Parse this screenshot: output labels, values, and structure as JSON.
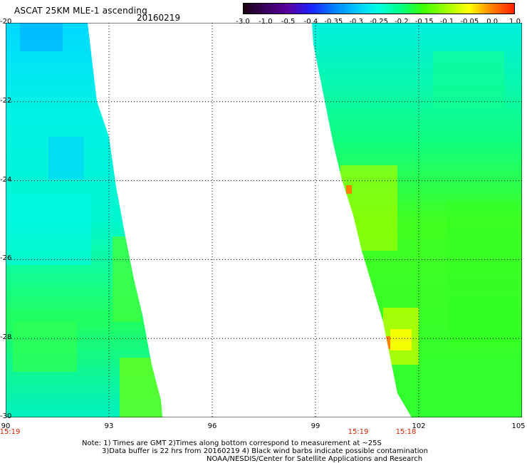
{
  "header": {
    "title": "ASCAT 25KM MLE-1 ascending",
    "date": "20160219"
  },
  "colorbar": {
    "ticks": [
      "-3.0",
      "-1.0",
      "-0.5",
      "-0.4",
      "-0.35",
      "-0.3",
      "-0.25",
      "-0.2",
      "-0.15",
      "-0.1",
      "-0.05",
      "0.0",
      "1.0"
    ],
    "colors": [
      "#1a0010",
      "#3a0060",
      "#5a00a0",
      "#1a20ff",
      "#0080ff",
      "#00c8ff",
      "#00ffe0",
      "#00ff80",
      "#40ff00",
      "#a0ff00",
      "#ffff00",
      "#ff8000",
      "#ff2000"
    ]
  },
  "axes": {
    "lat_labels": [
      "-20",
      "-22",
      "-24",
      "-26",
      "-28",
      "-30"
    ],
    "lon_labels": [
      "90",
      "93",
      "96",
      "99",
      "102",
      "105"
    ],
    "lat_range": [
      -30,
      -20
    ],
    "lon_range": [
      90,
      105
    ],
    "grid": true
  },
  "swath_times": {
    "left_swath": "15:19",
    "right_swath_start": "15:19",
    "right_swath_end": "15:18"
  },
  "notes": {
    "line1": "Note: 1) Times are GMT 2)Times along bottom correspond to measurement at ~25S",
    "line2": "3)Data buffer is 22 hrs from 20160219 4) Black wind barbs indicate possible contamination",
    "line3": "NOAA/NESDIS/Center for Satellite Applications and Research"
  }
}
